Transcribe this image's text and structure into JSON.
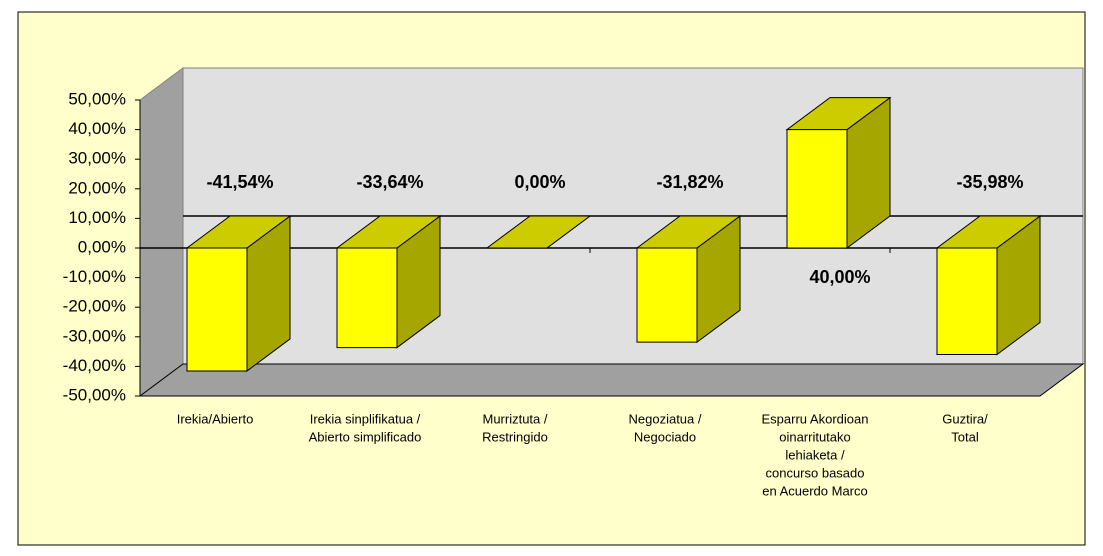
{
  "chart_data": {
    "type": "bar3d",
    "categories": [
      [
        "Irekia/Abierto"
      ],
      [
        "Irekia sinplifikatua /",
        "Abierto simplificado"
      ],
      [
        "Murriztuta /",
        "Restringido"
      ],
      [
        "Negoziatua /",
        "Negociado"
      ],
      [
        "Esparru Akordioan",
        "oinarritutako",
        "lehiaketa /",
        "concurso basado",
        "en Acuerdo Marco"
      ],
      [
        "Guztira/",
        "Total"
      ]
    ],
    "values": [
      -41.54,
      -33.64,
      0,
      -31.82,
      40,
      -35.98
    ],
    "value_labels": [
      "-41,54%",
      "-33,64%",
      "0,00%",
      "-31,82%",
      "40,00%",
      "-35,98%"
    ],
    "color": "#ffff00",
    "ylim": [
      -50,
      50
    ],
    "yticks": [
      {
        "value": 50,
        "label": "50,00%"
      },
      {
        "value": 40,
        "label": "40,00%"
      },
      {
        "value": 30,
        "label": "30,00%"
      },
      {
        "value": 20,
        "label": "20,00%"
      },
      {
        "value": 10,
        "label": "10,00%"
      },
      {
        "value": 0,
        "label": "0,00%"
      },
      {
        "value": -10,
        "label": "-10,00%"
      },
      {
        "value": -20,
        "label": "-20,00%"
      },
      {
        "value": -30,
        "label": "-30,00%"
      },
      {
        "value": -40,
        "label": "-40,00%"
      },
      {
        "value": -50,
        "label": "-50,00%"
      }
    ]
  }
}
